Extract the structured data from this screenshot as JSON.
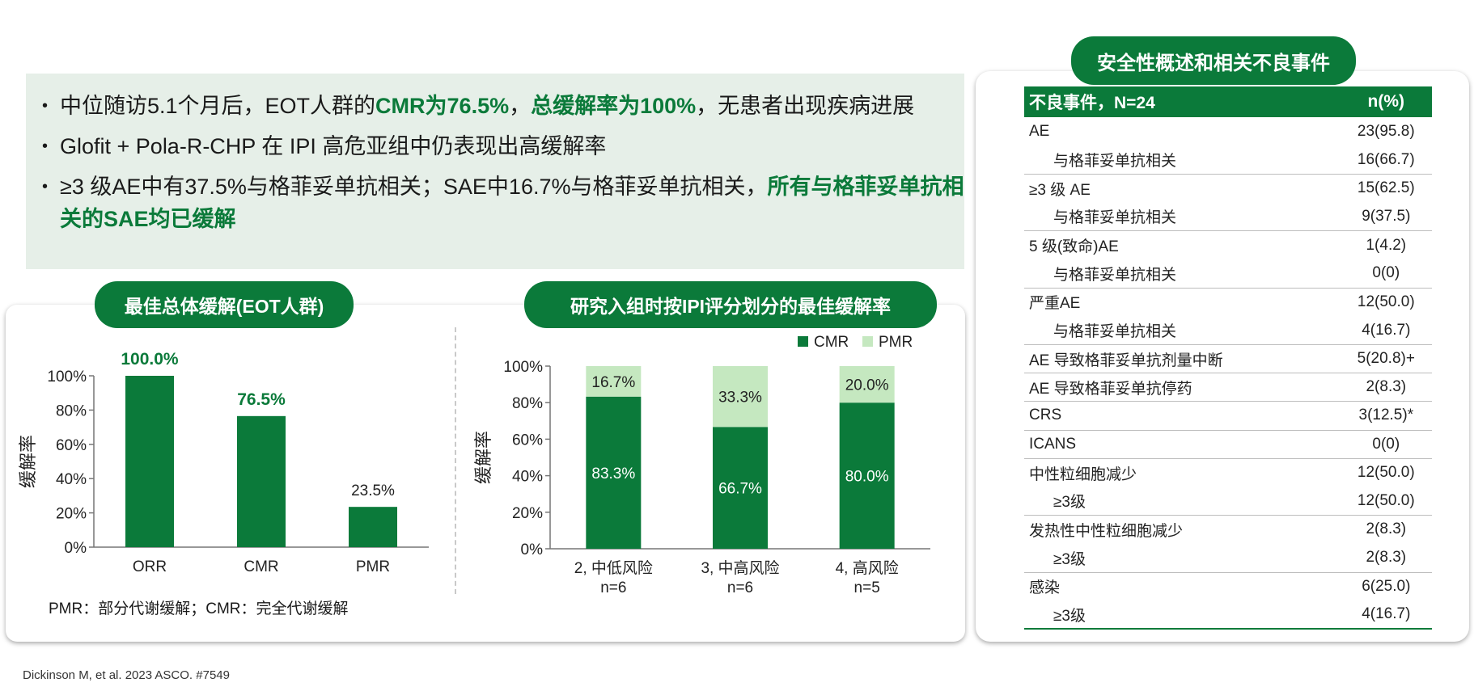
{
  "summary": {
    "bullets": [
      [
        {
          "text": "中位随访5.1个月后，EOT人群的",
          "hl": false
        },
        {
          "text": "CMR为76.5%",
          "hl": true
        },
        {
          "text": "，",
          "hl": false
        },
        {
          "text": "总缓解率为100%",
          "hl": true
        },
        {
          "text": "，无患者出现疾病进展",
          "hl": false
        }
      ],
      [
        {
          "text": "Glofit + Pola-R-CHP 在 IPI 高危亚组中仍表现出高缓解率",
          "hl": false
        }
      ],
      [
        {
          "text": "≥3 级AE中有37.5%与格菲妥单抗相关；SAE中16.7%与格菲妥单抗相关，",
          "hl": false
        },
        {
          "text": "所有与格菲妥单抗相关的SAE均已缓解",
          "hl": true
        }
      ]
    ]
  },
  "left_chart_title": "最佳总体缓解(EOT人群)",
  "right_chart_title": "研究入组时按IPI评分划分的最佳缓解率",
  "table_title": "安全性概述和相关不良事件",
  "footnote": "PMR：部分代谢缓解；CMR：完全代谢缓解",
  "citation": "Dickinson M, et al. 2023 ASCO. #7549",
  "colors": {
    "primary": "#0b7a3a",
    "light": "#c5e8c0"
  },
  "chart_data": [
    {
      "type": "bar",
      "title": "最佳总体缓解(EOT人群)",
      "categories": [
        "ORR",
        "CMR",
        "PMR"
      ],
      "values": [
        100.0,
        76.5,
        23.5
      ],
      "value_labels": [
        "100.0%",
        "76.5%",
        "23.5%"
      ],
      "ylabel": "缓解率",
      "ylim": [
        0,
        100
      ],
      "yticks": [
        "0%",
        "20%",
        "40%",
        "60%",
        "80%",
        "100%"
      ]
    },
    {
      "type": "bar",
      "stacked": true,
      "title": "研究入组时按IPI评分划分的最佳缓解率",
      "categories": [
        "2, 中低风险",
        "3, 中高风险",
        "4, 高风险"
      ],
      "category_sublabels": [
        "n=6",
        "n=6",
        "n=5"
      ],
      "series": [
        {
          "name": "CMR",
          "values": [
            83.3,
            66.7,
            80.0
          ],
          "labels": [
            "83.3%",
            "66.7%",
            "80.0%"
          ]
        },
        {
          "name": "PMR",
          "values": [
            16.7,
            33.3,
            20.0
          ],
          "labels": [
            "16.7%",
            "33.3%",
            "20.0%"
          ]
        }
      ],
      "ylabel": "缓解率",
      "ylim": [
        0,
        100
      ],
      "yticks": [
        "0%",
        "20%",
        "40%",
        "60%",
        "80%",
        "100%"
      ],
      "legend": "top-right"
    }
  ],
  "ae_table": {
    "header": [
      "不良事件，N=24",
      "n(%)"
    ],
    "rows": [
      {
        "label": "AE",
        "value": "23(95.8)",
        "sub": false
      },
      {
        "label": "与格菲妥单抗相关",
        "value": "16(66.7)",
        "sub": true
      },
      {
        "label": "≥3 级 AE",
        "value": "15(62.5)",
        "sub": false
      },
      {
        "label": "与格菲妥单抗相关",
        "value": "9(37.5)",
        "sub": true
      },
      {
        "label": "5 级(致命)AE",
        "value": "1(4.2)",
        "sub": false
      },
      {
        "label": "与格菲妥单抗相关",
        "value": "0(0)",
        "sub": true
      },
      {
        "label": "严重AE",
        "value": "12(50.0)",
        "sub": false
      },
      {
        "label": "与格菲妥单抗相关",
        "value": "4(16.7)",
        "sub": true
      },
      {
        "label": "AE 导致格菲妥单抗剂量中断",
        "value": "5(20.8)+",
        "sub": false
      },
      {
        "label": "AE 导致格菲妥单抗停药",
        "value": "2(8.3)",
        "sub": false
      },
      {
        "label": "CRS",
        "value": "3(12.5)*",
        "sub": false
      },
      {
        "label": "ICANS",
        "value": "0(0)",
        "sub": false
      },
      {
        "label": "中性粒细胞减少",
        "value": "12(50.0)",
        "sub": false
      },
      {
        "label": "≥3级",
        "value": "12(50.0)",
        "sub": true
      },
      {
        "label": "发热性中性粒细胞减少",
        "value": "2(8.3)",
        "sub": false
      },
      {
        "label": "≥3级",
        "value": "2(8.3)",
        "sub": true
      },
      {
        "label": "感染",
        "value": "6(25.0)",
        "sub": false
      },
      {
        "label": "≥3级",
        "value": "4(16.7)",
        "sub": true
      }
    ]
  }
}
